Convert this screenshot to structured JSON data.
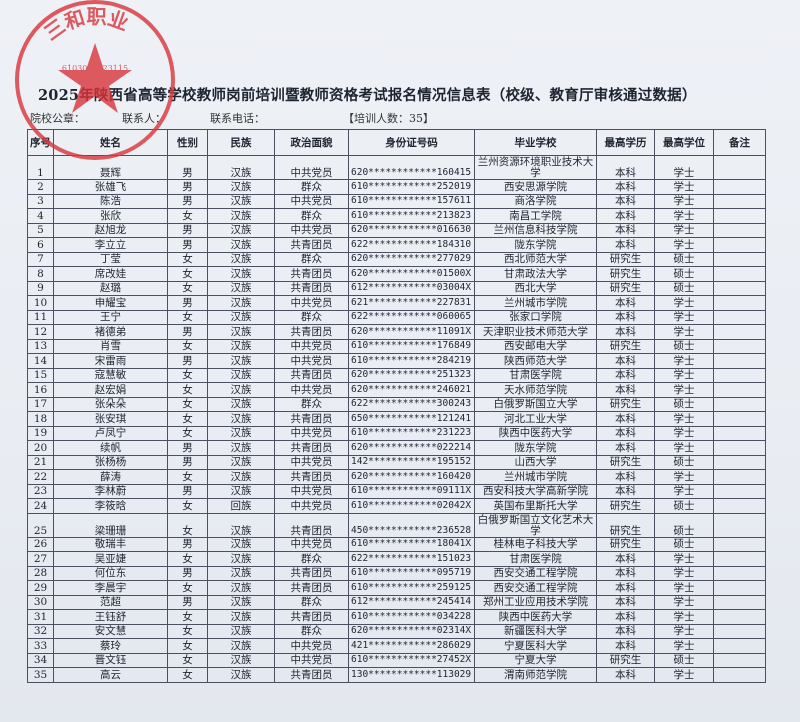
{
  "title": "2025年陕西省高等学校教师岗前培训暨教师资格考试报名情况信息表（校级、教育厅审核通过数据）",
  "sub": {
    "seal_label": "院校公章：",
    "contact_label": "联系人：",
    "phone_label": "联系电话：",
    "count": "【培训人数：35】"
  },
  "stamp": {
    "text": "三和职业",
    "number": "6103040023115",
    "color": "#d8343a"
  },
  "columns": [
    "序号",
    "姓名",
    "性别",
    "民族",
    "政治面貌",
    "身份证号码",
    "毕业学校",
    "最高学历",
    "最高学位",
    "备注"
  ],
  "rows": [
    [
      "1",
      "聂辉",
      "男",
      "汉族",
      "中共党员",
      "620************160415",
      "兰州资源环境职业技术大学",
      "本科",
      "学士",
      ""
    ],
    [
      "2",
      "张雄飞",
      "男",
      "汉族",
      "群众",
      "610************252019",
      "西安思源学院",
      "本科",
      "学士",
      ""
    ],
    [
      "3",
      "陈浩",
      "男",
      "汉族",
      "中共党员",
      "610************157611",
      "商洛学院",
      "本科",
      "学士",
      ""
    ],
    [
      "4",
      "张欣",
      "女",
      "汉族",
      "群众",
      "610************213823",
      "南昌工学院",
      "本科",
      "学士",
      ""
    ],
    [
      "5",
      "赵旭龙",
      "男",
      "汉族",
      "中共党员",
      "620************016630",
      "兰州信息科技学院",
      "本科",
      "学士",
      ""
    ],
    [
      "6",
      "李立立",
      "男",
      "汉族",
      "共青团员",
      "622************184310",
      "陇东学院",
      "本科",
      "学士",
      ""
    ],
    [
      "7",
      "丁莹",
      "女",
      "汉族",
      "群众",
      "620************277029",
      "西北师范大学",
      "研究生",
      "硕士",
      ""
    ],
    [
      "8",
      "席改娃",
      "女",
      "汉族",
      "共青团员",
      "620************01500X",
      "甘肃政法大学",
      "研究生",
      "硕士",
      ""
    ],
    [
      "9",
      "赵璐",
      "女",
      "汉族",
      "共青团员",
      "612************03004X",
      "西北大学",
      "研究生",
      "硕士",
      ""
    ],
    [
      "10",
      "申耀宝",
      "男",
      "汉族",
      "中共党员",
      "621************227831",
      "兰州城市学院",
      "本科",
      "学士",
      ""
    ],
    [
      "11",
      "王宁",
      "女",
      "汉族",
      "群众",
      "622************060065",
      "张家口学院",
      "本科",
      "学士",
      ""
    ],
    [
      "12",
      "褚德弟",
      "男",
      "汉族",
      "共青团员",
      "620************11091X",
      "天津职业技术师范大学",
      "本科",
      "学士",
      ""
    ],
    [
      "13",
      "肖雪",
      "女",
      "汉族",
      "中共党员",
      "610************176849",
      "西安邮电大学",
      "研究生",
      "硕士",
      ""
    ],
    [
      "14",
      "宋雷雨",
      "男",
      "汉族",
      "中共党员",
      "610************284219",
      "陕西师范大学",
      "本科",
      "学士",
      ""
    ],
    [
      "15",
      "寇慧敏",
      "女",
      "汉族",
      "共青团员",
      "620************251323",
      "甘肃医学院",
      "本科",
      "学士",
      ""
    ],
    [
      "16",
      "赵宏娟",
      "女",
      "汉族",
      "中共党员",
      "620************246021",
      "天水师范学院",
      "本科",
      "学士",
      ""
    ],
    [
      "17",
      "张朵朵",
      "女",
      "汉族",
      "群众",
      "622************300243",
      "白俄罗斯国立大学",
      "研究生",
      "硕士",
      ""
    ],
    [
      "18",
      "张安琪",
      "女",
      "汉族",
      "共青团员",
      "650************121241",
      "河北工业大学",
      "本科",
      "学士",
      ""
    ],
    [
      "19",
      "卢凤宁",
      "女",
      "汉族",
      "中共党员",
      "610************231223",
      "陕西中医药大学",
      "本科",
      "学士",
      ""
    ],
    [
      "20",
      "续帆",
      "男",
      "汉族",
      "共青团员",
      "620************022214",
      "陇东学院",
      "本科",
      "学士",
      ""
    ],
    [
      "21",
      "张杨杨",
      "男",
      "汉族",
      "中共党员",
      "142************195152",
      "山西大学",
      "研究生",
      "硕士",
      ""
    ],
    [
      "22",
      "薛涛",
      "女",
      "汉族",
      "共青团员",
      "620************160420",
      "兰州城市学院",
      "本科",
      "学士",
      ""
    ],
    [
      "23",
      "李林蔚",
      "男",
      "汉族",
      "中共党员",
      "610************09111X",
      "西安科技大学高新学院",
      "本科",
      "学士",
      ""
    ],
    [
      "24",
      "李筱晗",
      "女",
      "回族",
      "中共党员",
      "610************02042X",
      "英国布里斯托大学",
      "研究生",
      "硕士",
      ""
    ],
    [
      "25",
      "梁珊珊",
      "女",
      "汉族",
      "共青团员",
      "450************236528",
      "白俄罗斯国立文化艺术大学",
      "研究生",
      "硕士",
      ""
    ],
    [
      "26",
      "敬瑞丰",
      "男",
      "汉族",
      "中共党员",
      "610************18041X",
      "桂林电子科技大学",
      "研究生",
      "硕士",
      ""
    ],
    [
      "27",
      "吴亚婕",
      "女",
      "汉族",
      "群众",
      "622************151023",
      "甘肃医学院",
      "本科",
      "学士",
      ""
    ],
    [
      "28",
      "何位东",
      "男",
      "汉族",
      "共青团员",
      "610************095719",
      "西安交通工程学院",
      "本科",
      "学士",
      ""
    ],
    [
      "29",
      "李晨宇",
      "女",
      "汉族",
      "共青团员",
      "610************259125",
      "西安交通工程学院",
      "本科",
      "学士",
      ""
    ],
    [
      "30",
      "范超",
      "男",
      "汉族",
      "群众",
      "612************245414",
      "郑州工业应用技术学院",
      "本科",
      "学士",
      ""
    ],
    [
      "31",
      "王钰舒",
      "女",
      "汉族",
      "共青团员",
      "610************034228",
      "陕西中医药大学",
      "本科",
      "学士",
      ""
    ],
    [
      "32",
      "安文慧",
      "女",
      "汉族",
      "群众",
      "620************02314X",
      "新疆医科大学",
      "本科",
      "学士",
      ""
    ],
    [
      "33",
      "蔡玲",
      "女",
      "汉族",
      "中共党员",
      "421************286029",
      "宁夏医科大学",
      "本科",
      "学士",
      ""
    ],
    [
      "34",
      "晋文钰",
      "女",
      "汉族",
      "中共党员",
      "610************27452X",
      "宁夏大学",
      "研究生",
      "硕士",
      ""
    ],
    [
      "35",
      "高云",
      "女",
      "汉族",
      "共青团员",
      "130************113029",
      "渭南师范学院",
      "本科",
      "学士",
      ""
    ]
  ]
}
